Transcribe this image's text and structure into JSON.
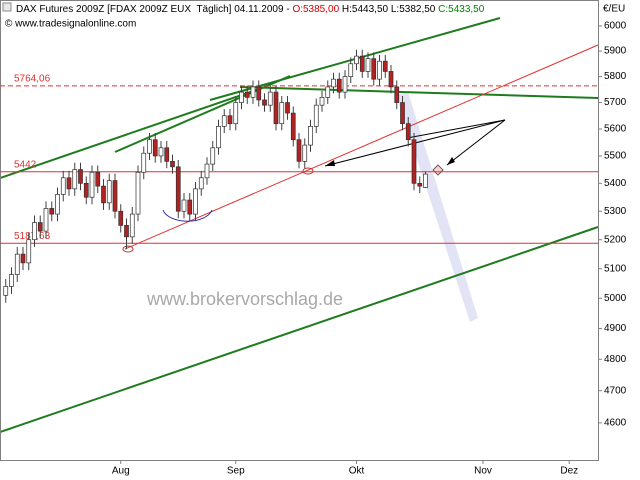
{
  "chart_data": {
    "type": "candlestick",
    "title_parts": [
      {
        "text": "DAX Futures 2009Z [FDAX 2009Z EUX  Täglich] 04.11.2009 - ",
        "color": "#000000"
      },
      {
        "text": "O:5385,00",
        "color": "#d00000"
      },
      {
        "text": " H:5443,50 L:5382,50 ",
        "color": "#000000"
      },
      {
        "text": "C:5433,50",
        "color": "#008000"
      }
    ],
    "subtitle": "© www.tradesignalonline.com",
    "watermark": "www.brokervorschlag.de",
    "y_unit": "€/EU",
    "log_scale": true,
    "ylim": [
      4487,
      6032
    ],
    "yticks": [
      4600,
      4700,
      4800,
      4900,
      5000,
      5100,
      5200,
      5300,
      5400,
      5500,
      5600,
      5700,
      5800,
      5900,
      6000
    ],
    "xlim": [
      -1,
      103
    ],
    "xticks": [
      {
        "value": 20,
        "label": "Aug"
      },
      {
        "value": 40,
        "label": "Sep"
      },
      {
        "value": 61,
        "label": "Okt"
      },
      {
        "value": 83,
        "label": "Nov"
      },
      {
        "value": 98,
        "label": "Dez"
      }
    ],
    "up_color": "#ffffff",
    "down_color": "#b22222",
    "wick_color": "#404040",
    "open": [
      5010,
      5040,
      5080,
      5150,
      5120,
      5200,
      5260,
      5230,
      5310,
      5290,
      5360,
      5420,
      5380,
      5450,
      5400,
      5350,
      5440,
      5390,
      5330,
      5410,
      5300,
      5250,
      5210,
      5290,
      5440,
      5510,
      5560,
      5500,
      5530,
      5480,
      5460,
      5300,
      5340,
      5290,
      5380,
      5420,
      5470,
      5530,
      5610,
      5650,
      5620,
      5700,
      5740,
      5720,
      5760,
      5710,
      5690,
      5740,
      5620,
      5700,
      5660,
      5560,
      5480,
      5540,
      5610,
      5690,
      5720,
      5760,
      5790,
      5740,
      5800,
      5850,
      5880,
      5820,
      5870,
      5790,
      5860,
      5820,
      5760,
      5700,
      5620,
      5560,
      5400,
      5385
    ],
    "high": [
      5065,
      5105,
      5175,
      5175,
      5225,
      5285,
      5285,
      5335,
      5335,
      5385,
      5445,
      5445,
      5475,
      5475,
      5425,
      5465,
      5465,
      5415,
      5435,
      5435,
      5325,
      5275,
      5315,
      5465,
      5535,
      5585,
      5585,
      5555,
      5555,
      5505,
      5485,
      5365,
      5365,
      5405,
      5445,
      5495,
      5555,
      5635,
      5675,
      5675,
      5725,
      5765,
      5765,
      5785,
      5785,
      5735,
      5765,
      5765,
      5725,
      5725,
      5685,
      5585,
      5565,
      5635,
      5715,
      5745,
      5785,
      5815,
      5815,
      5825,
      5875,
      5905,
      5905,
      5895,
      5895,
      5885,
      5885,
      5845,
      5785,
      5725,
      5645,
      5585,
      5425,
      5443.5
    ],
    "low": [
      4985,
      5015,
      5055,
      5095,
      5095,
      5175,
      5205,
      5205,
      5265,
      5265,
      5335,
      5355,
      5355,
      5375,
      5325,
      5325,
      5365,
      5305,
      5305,
      5275,
      5225,
      5167,
      5185,
      5265,
      5415,
      5485,
      5475,
      5475,
      5455,
      5435,
      5275,
      5275,
      5265,
      5265,
      5355,
      5395,
      5445,
      5505,
      5585,
      5595,
      5595,
      5675,
      5695,
      5695,
      5685,
      5665,
      5665,
      5595,
      5595,
      5635,
      5535,
      5455,
      5455,
      5515,
      5585,
      5665,
      5695,
      5735,
      5715,
      5715,
      5775,
      5825,
      5795,
      5795,
      5765,
      5765,
      5795,
      5735,
      5675,
      5595,
      5535,
      5375,
      5365,
      5382.5
    ],
    "close": [
      5040,
      5080,
      5150,
      5120,
      5200,
      5260,
      5230,
      5310,
      5290,
      5360,
      5420,
      5380,
      5450,
      5400,
      5350,
      5440,
      5390,
      5330,
      5410,
      5300,
      5250,
      5210,
      5290,
      5440,
      5510,
      5560,
      5500,
      5530,
      5480,
      5460,
      5300,
      5340,
      5290,
      5380,
      5420,
      5470,
      5530,
      5610,
      5650,
      5620,
      5700,
      5740,
      5720,
      5760,
      5710,
      5690,
      5740,
      5620,
      5700,
      5660,
      5560,
      5480,
      5540,
      5610,
      5690,
      5720,
      5760,
      5790,
      5740,
      5800,
      5850,
      5880,
      5820,
      5870,
      5790,
      5860,
      5820,
      5760,
      5700,
      5620,
      5560,
      5400,
      5390,
      5433.5
    ],
    "hlines": [
      {
        "value": 5764.06,
        "label": "5764,06",
        "color": "#e03030",
        "dashed": true
      },
      {
        "value": 5442,
        "label": "5442",
        "color": "#e03030",
        "dashed": false
      },
      {
        "value": 5187.63,
        "label": "5187,63",
        "color": "#e03030",
        "dashed": false
      }
    ]
  }
}
